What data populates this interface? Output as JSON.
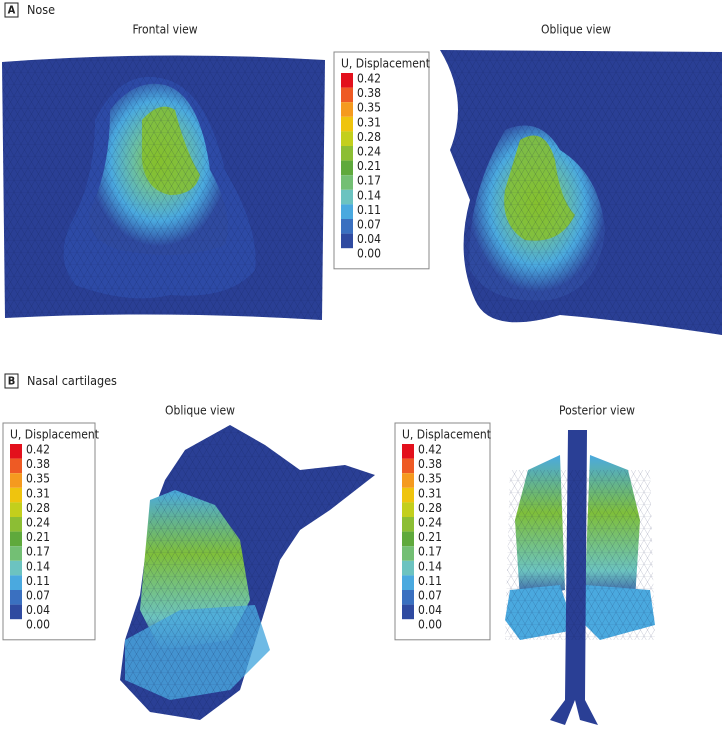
{
  "panel_a": {
    "label": "A",
    "title": "Nose",
    "views": [
      "Frontal view",
      "Oblique view"
    ],
    "legend": {
      "title": "U, Displacement",
      "labels": [
        "0.42",
        "0.38",
        "0.35",
        "0.31",
        "0.28",
        "0.24",
        "0.21",
        "0.17",
        "0.14",
        "0.11",
        "0.07",
        "0.04",
        "0.00"
      ]
    }
  },
  "panel_b": {
    "label": "B",
    "title": "Nasal cartilages",
    "views": [
      "Oblique view",
      "Posterior view"
    ],
    "legends": [
      {
        "title": "U, Displacement",
        "labels": [
          "0.42",
          "0.38",
          "0.35",
          "0.31",
          "0.28",
          "0.24",
          "0.21",
          "0.17",
          "0.14",
          "0.11",
          "0.07",
          "0.04",
          "0.00"
        ]
      },
      {
        "title": "U, Displacement",
        "labels": [
          "0.42",
          "0.38",
          "0.35",
          "0.31",
          "0.28",
          "0.24",
          "0.21",
          "0.17",
          "0.14",
          "0.11",
          "0.07",
          "0.04",
          "0.00"
        ]
      }
    ]
  },
  "legend_colors": [
    "#e3101c",
    "#ee5a24",
    "#f59a1f",
    "#efc40e",
    "#c3cf1c",
    "#8cbe34",
    "#5fa93c",
    "#73bf74",
    "#6cc3c0",
    "#4aa9df",
    "#3a70c0",
    "#2f4aa0"
  ]
}
